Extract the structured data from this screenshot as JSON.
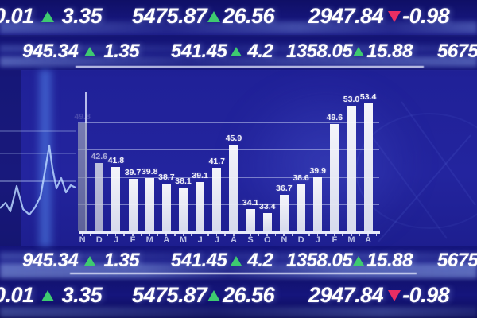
{
  "colors": {
    "background_blue": "#1e1f96",
    "band_navy": "#141478",
    "text_white": "#ffffff",
    "up_green": "#3ecb70",
    "down_pink": "#e82e63",
    "bar_white": "#f4f6fc",
    "grid_line": "#cdd6f5",
    "accent_cyan_band": "#5e9bff"
  },
  "ticker_rows": [
    {
      "position": "top-outer",
      "segments": [
        {
          "value": "0.01",
          "direction": "up",
          "change": "3.35"
        },
        {
          "value": "5475.87",
          "direction": "up",
          "change": "26.56"
        },
        {
          "value": "2947.84",
          "direction": "down",
          "change": "-0.98"
        }
      ]
    },
    {
      "position": "top-inner",
      "segments": [
        {
          "value": "945.34",
          "direction": "up",
          "change": "1.35"
        },
        {
          "value": "541.45",
          "direction": "up",
          "change": "4.2"
        },
        {
          "value": "1358.05",
          "direction": "up",
          "change": "15.88"
        },
        {
          "value": "5675",
          "direction": "none",
          "change": ""
        }
      ]
    },
    {
      "position": "bottom-inner",
      "segments": [
        {
          "value": "945.34",
          "direction": "up",
          "change": "1.35"
        },
        {
          "value": "541.45",
          "direction": "up",
          "change": "4.2"
        },
        {
          "value": "1358.05",
          "direction": "up",
          "change": "15.88"
        },
        {
          "value": "5675",
          "direction": "none",
          "change": ""
        }
      ]
    },
    {
      "position": "bottom-outer",
      "segments": [
        {
          "value": "0.01",
          "direction": "up",
          "change": "3.35"
        },
        {
          "value": "5475.87",
          "direction": "up",
          "change": "26.56"
        },
        {
          "value": "2947.84",
          "direction": "down",
          "change": "-0.98"
        }
      ]
    }
  ],
  "chart_data": {
    "type": "bar",
    "title": "",
    "categories": [
      "N",
      "D",
      "J",
      "F",
      "M",
      "A",
      "M",
      "J",
      "J",
      "A",
      "S",
      "O",
      "N",
      "D",
      "J",
      "F",
      "M",
      "A"
    ],
    "values": [
      49.8,
      42.6,
      41.8,
      39.7,
      39.8,
      38.7,
      38.1,
      39.1,
      41.7,
      45.9,
      34.1,
      33.4,
      36.7,
      38.6,
      39.9,
      49.6,
      53.0,
      53.4
    ],
    "bar_labels": [
      "49.8",
      "42.6",
      "41.8",
      "39.7",
      "39.8",
      "38.7",
      "38.1",
      "39.1",
      "41.7",
      "45.9",
      "34.1",
      "33.4",
      "36.7",
      "38.6",
      "39.9",
      "49.6",
      "53.0",
      "53.4"
    ],
    "xlabel": "",
    "ylabel": "",
    "ylim": [
      30,
      57
    ],
    "gridline_values": [
      55,
      50,
      45,
      40,
      35
    ],
    "y_axis_labels_visible": false,
    "legend": "none",
    "grid": "on"
  }
}
